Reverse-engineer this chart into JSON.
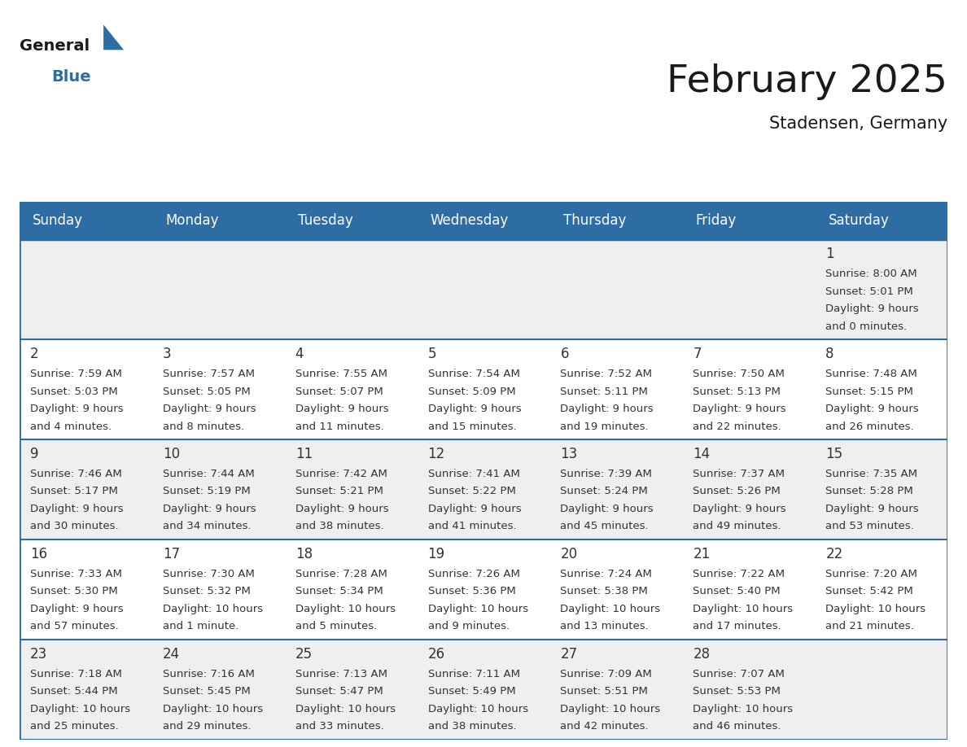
{
  "title": "February 2025",
  "subtitle": "Stadensen, Germany",
  "header_bg": "#2E6DA4",
  "header_text": "#FFFFFF",
  "cell_bg": "#EFEFEF",
  "cell_bg_white": "#FFFFFF",
  "day_names": [
    "Sunday",
    "Monday",
    "Tuesday",
    "Wednesday",
    "Thursday",
    "Friday",
    "Saturday"
  ],
  "days": [
    {
      "day": 1,
      "col": 6,
      "row": 0,
      "sunrise": "8:00 AM",
      "sunset": "5:01 PM",
      "daylight_line1": "Daylight: 9 hours",
      "daylight_line2": "and 0 minutes."
    },
    {
      "day": 2,
      "col": 0,
      "row": 1,
      "sunrise": "7:59 AM",
      "sunset": "5:03 PM",
      "daylight_line1": "Daylight: 9 hours",
      "daylight_line2": "and 4 minutes."
    },
    {
      "day": 3,
      "col": 1,
      "row": 1,
      "sunrise": "7:57 AM",
      "sunset": "5:05 PM",
      "daylight_line1": "Daylight: 9 hours",
      "daylight_line2": "and 8 minutes."
    },
    {
      "day": 4,
      "col": 2,
      "row": 1,
      "sunrise": "7:55 AM",
      "sunset": "5:07 PM",
      "daylight_line1": "Daylight: 9 hours",
      "daylight_line2": "and 11 minutes."
    },
    {
      "day": 5,
      "col": 3,
      "row": 1,
      "sunrise": "7:54 AM",
      "sunset": "5:09 PM",
      "daylight_line1": "Daylight: 9 hours",
      "daylight_line2": "and 15 minutes."
    },
    {
      "day": 6,
      "col": 4,
      "row": 1,
      "sunrise": "7:52 AM",
      "sunset": "5:11 PM",
      "daylight_line1": "Daylight: 9 hours",
      "daylight_line2": "and 19 minutes."
    },
    {
      "day": 7,
      "col": 5,
      "row": 1,
      "sunrise": "7:50 AM",
      "sunset": "5:13 PM",
      "daylight_line1": "Daylight: 9 hours",
      "daylight_line2": "and 22 minutes."
    },
    {
      "day": 8,
      "col": 6,
      "row": 1,
      "sunrise": "7:48 AM",
      "sunset": "5:15 PM",
      "daylight_line1": "Daylight: 9 hours",
      "daylight_line2": "and 26 minutes."
    },
    {
      "day": 9,
      "col": 0,
      "row": 2,
      "sunrise": "7:46 AM",
      "sunset": "5:17 PM",
      "daylight_line1": "Daylight: 9 hours",
      "daylight_line2": "and 30 minutes."
    },
    {
      "day": 10,
      "col": 1,
      "row": 2,
      "sunrise": "7:44 AM",
      "sunset": "5:19 PM",
      "daylight_line1": "Daylight: 9 hours",
      "daylight_line2": "and 34 minutes."
    },
    {
      "day": 11,
      "col": 2,
      "row": 2,
      "sunrise": "7:42 AM",
      "sunset": "5:21 PM",
      "daylight_line1": "Daylight: 9 hours",
      "daylight_line2": "and 38 minutes."
    },
    {
      "day": 12,
      "col": 3,
      "row": 2,
      "sunrise": "7:41 AM",
      "sunset": "5:22 PM",
      "daylight_line1": "Daylight: 9 hours",
      "daylight_line2": "and 41 minutes."
    },
    {
      "day": 13,
      "col": 4,
      "row": 2,
      "sunrise": "7:39 AM",
      "sunset": "5:24 PM",
      "daylight_line1": "Daylight: 9 hours",
      "daylight_line2": "and 45 minutes."
    },
    {
      "day": 14,
      "col": 5,
      "row": 2,
      "sunrise": "7:37 AM",
      "sunset": "5:26 PM",
      "daylight_line1": "Daylight: 9 hours",
      "daylight_line2": "and 49 minutes."
    },
    {
      "day": 15,
      "col": 6,
      "row": 2,
      "sunrise": "7:35 AM",
      "sunset": "5:28 PM",
      "daylight_line1": "Daylight: 9 hours",
      "daylight_line2": "and 53 minutes."
    },
    {
      "day": 16,
      "col": 0,
      "row": 3,
      "sunrise": "7:33 AM",
      "sunset": "5:30 PM",
      "daylight_line1": "Daylight: 9 hours",
      "daylight_line2": "and 57 minutes."
    },
    {
      "day": 17,
      "col": 1,
      "row": 3,
      "sunrise": "7:30 AM",
      "sunset": "5:32 PM",
      "daylight_line1": "Daylight: 10 hours",
      "daylight_line2": "and 1 minute."
    },
    {
      "day": 18,
      "col": 2,
      "row": 3,
      "sunrise": "7:28 AM",
      "sunset": "5:34 PM",
      "daylight_line1": "Daylight: 10 hours",
      "daylight_line2": "and 5 minutes."
    },
    {
      "day": 19,
      "col": 3,
      "row": 3,
      "sunrise": "7:26 AM",
      "sunset": "5:36 PM",
      "daylight_line1": "Daylight: 10 hours",
      "daylight_line2": "and 9 minutes."
    },
    {
      "day": 20,
      "col": 4,
      "row": 3,
      "sunrise": "7:24 AM",
      "sunset": "5:38 PM",
      "daylight_line1": "Daylight: 10 hours",
      "daylight_line2": "and 13 minutes."
    },
    {
      "day": 21,
      "col": 5,
      "row": 3,
      "sunrise": "7:22 AM",
      "sunset": "5:40 PM",
      "daylight_line1": "Daylight: 10 hours",
      "daylight_line2": "and 17 minutes."
    },
    {
      "day": 22,
      "col": 6,
      "row": 3,
      "sunrise": "7:20 AM",
      "sunset": "5:42 PM",
      "daylight_line1": "Daylight: 10 hours",
      "daylight_line2": "and 21 minutes."
    },
    {
      "day": 23,
      "col": 0,
      "row": 4,
      "sunrise": "7:18 AM",
      "sunset": "5:44 PM",
      "daylight_line1": "Daylight: 10 hours",
      "daylight_line2": "and 25 minutes."
    },
    {
      "day": 24,
      "col": 1,
      "row": 4,
      "sunrise": "7:16 AM",
      "sunset": "5:45 PM",
      "daylight_line1": "Daylight: 10 hours",
      "daylight_line2": "and 29 minutes."
    },
    {
      "day": 25,
      "col": 2,
      "row": 4,
      "sunrise": "7:13 AM",
      "sunset": "5:47 PM",
      "daylight_line1": "Daylight: 10 hours",
      "daylight_line2": "and 33 minutes."
    },
    {
      "day": 26,
      "col": 3,
      "row": 4,
      "sunrise": "7:11 AM",
      "sunset": "5:49 PM",
      "daylight_line1": "Daylight: 10 hours",
      "daylight_line2": "and 38 minutes."
    },
    {
      "day": 27,
      "col": 4,
      "row": 4,
      "sunrise": "7:09 AM",
      "sunset": "5:51 PM",
      "daylight_line1": "Daylight: 10 hours",
      "daylight_line2": "and 42 minutes."
    },
    {
      "day": 28,
      "col": 5,
      "row": 4,
      "sunrise": "7:07 AM",
      "sunset": "5:53 PM",
      "daylight_line1": "Daylight: 10 hours",
      "daylight_line2": "and 46 minutes."
    }
  ],
  "num_rows": 5,
  "num_cols": 7,
  "title_fontsize": 34,
  "subtitle_fontsize": 15,
  "day_name_fontsize": 12,
  "day_num_fontsize": 12,
  "cell_text_fontsize": 9.5,
  "border_color": "#2E6DA4",
  "text_color": "#333333",
  "logo_general_color": "#1a1a1a",
  "logo_blue_color": "#2E6DA4",
  "logo_triangle_color": "#2E6DA4"
}
